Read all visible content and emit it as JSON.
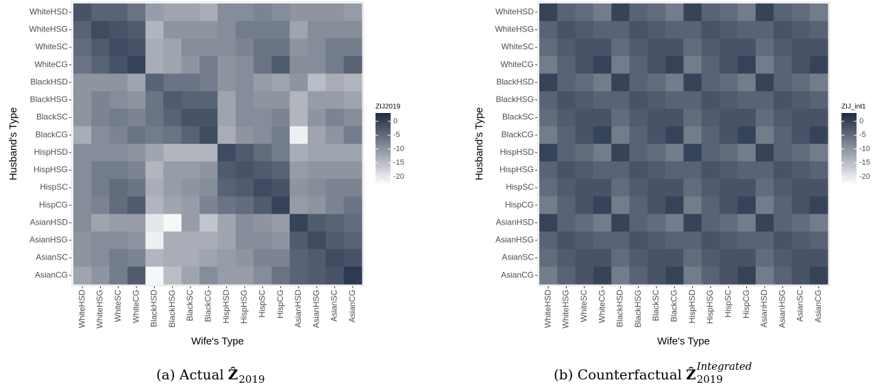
{
  "chart_data": [
    {
      "type": "heatmap",
      "x_label": "Wife's Type",
      "y_label": "Husband's Type",
      "colorbar_title": "ZIJ2019",
      "caption_prefix": "(a) Actual",
      "caption_symbol": "Ẑ",
      "caption_subscript": "2019",
      "x_categories": [
        "WhiteHSD",
        "WhiteHSG",
        "WhiteSC",
        "WhiteCG",
        "BlackHSD",
        "BlackHSG",
        "BlackSC",
        "BlackCG",
        "HispHSD",
        "HispHSG",
        "HispSC",
        "HispCG",
        "AsianHSD",
        "AsianHSG",
        "AsianSC",
        "AsianCG"
      ],
      "y_categories": [
        "WhiteHSD",
        "WhiteHSG",
        "WhiteSC",
        "WhiteCG",
        "BlackHSD",
        "BlackHSG",
        "BlackSC",
        "BlackCG",
        "HispHSD",
        "HispHSG",
        "HispSC",
        "HispCG",
        "AsianHSD",
        "AsianHSG",
        "AsianSC",
        "AsianCG"
      ],
      "values": [
        [
          -2,
          -4,
          -4,
          -6,
          -11,
          -12,
          -12,
          -13,
          -9,
          -9,
          -8,
          -9,
          -10,
          -10,
          -10,
          -11
        ],
        [
          -4,
          -1,
          -2,
          -3,
          -14,
          -10,
          -10,
          -10,
          -9,
          -7,
          -7,
          -7,
          -12,
          -9,
          -9,
          -9
        ],
        [
          -5,
          -3,
          -1,
          -2,
          -13,
          -12,
          -9,
          -9,
          -9,
          -8,
          -6,
          -6,
          -10,
          -9,
          -7,
          -7
        ],
        [
          -6,
          -4,
          -2,
          0,
          -13,
          -12,
          -10,
          -7,
          -10,
          -9,
          -6,
          -3,
          -9,
          -9,
          -7,
          -4
        ],
        [
          -10,
          -10,
          -10,
          -12,
          -4,
          -6,
          -6,
          -7,
          -10,
          -9,
          -11,
          -12,
          -10,
          -15,
          -13,
          -14
        ],
        [
          -10,
          -8,
          -9,
          -10,
          -6,
          -3,
          -4,
          -4,
          -12,
          -9,
          -10,
          -10,
          -14,
          -11,
          -11,
          -12
        ],
        [
          -10,
          -8,
          -7,
          -8,
          -6,
          -4,
          -2,
          -2,
          -12,
          -9,
          -9,
          -8,
          -14,
          -10,
          -8,
          -9
        ],
        [
          -13,
          -9,
          -8,
          -6,
          -7,
          -6,
          -4,
          -1,
          -13,
          -10,
          -9,
          -7,
          -21,
          -12,
          -10,
          -7
        ],
        [
          -9,
          -9,
          -9,
          -10,
          -12,
          -14,
          -14,
          -14,
          -1,
          -3,
          -5,
          -7,
          -13,
          -12,
          -12,
          -12
        ],
        [
          -9,
          -7,
          -7,
          -8,
          -14,
          -11,
          -11,
          -10,
          -3,
          -2,
          -3,
          -4,
          -11,
          -10,
          -10,
          -10
        ],
        [
          -9,
          -7,
          -5,
          -6,
          -13,
          -11,
          -10,
          -9,
          -4,
          -3,
          -1,
          -2,
          -10,
          -9,
          -8,
          -8
        ],
        [
          -9,
          -8,
          -5,
          -3,
          -14,
          -12,
          -11,
          -8,
          -6,
          -5,
          -3,
          0,
          -11,
          -10,
          -8,
          -6
        ],
        [
          -9,
          -12,
          -11,
          -11,
          -20,
          -22,
          -11,
          -16,
          -12,
          -9,
          -10,
          -11,
          0,
          -3,
          -4,
          -5
        ],
        [
          -10,
          -9,
          -9,
          -10,
          -21,
          -13,
          -13,
          -13,
          -12,
          -9,
          -9,
          -10,
          -3,
          -1,
          -3,
          -4
        ],
        [
          -10,
          -9,
          -7,
          -8,
          -14,
          -13,
          -13,
          -12,
          -11,
          -10,
          -8,
          -8,
          -4,
          -3,
          -1,
          -2
        ],
        [
          -12,
          -10,
          -7,
          -3,
          -22,
          -15,
          -12,
          -9,
          -11,
          -11,
          -9,
          -6,
          -4,
          -3,
          -2,
          1
        ]
      ],
      "clim": [
        -23,
        3
      ],
      "cticks": [
        0,
        -5,
        -10,
        -15,
        -20
      ],
      "low_color": "#ffffff",
      "high_color": "#1c2a43"
    },
    {
      "type": "heatmap",
      "x_label": "Wife's Type",
      "y_label": "Husband's Type",
      "colorbar_title": "ZIJ_int1",
      "caption_prefix": "(b) Counterfactual",
      "caption_symbol": "Ẑ",
      "caption_subscript": "2019",
      "caption_superscript": "Integrated",
      "x_categories": [
        "WhiteHSD",
        "WhiteHSG",
        "WhiteSC",
        "WhiteCG",
        "BlackHSD",
        "BlackHSG",
        "BlackSC",
        "BlackCG",
        "HispHSD",
        "HispHSG",
        "HispSC",
        "HispCG",
        "AsianHSD",
        "AsianHSG",
        "AsianSC",
        "AsianCG"
      ],
      "y_categories": [
        "WhiteHSD",
        "WhiteHSG",
        "WhiteSC",
        "WhiteCG",
        "BlackHSD",
        "BlackHSG",
        "BlackSC",
        "BlackCG",
        "HispHSD",
        "HispHSG",
        "HispSC",
        "HispCG",
        "AsianHSD",
        "AsianHSG",
        "AsianSC",
        "AsianCG"
      ],
      "values": [
        [
          0,
          -4,
          -5,
          -7,
          0,
          -4,
          -5,
          -7,
          0,
          -4,
          -5,
          -7,
          0,
          -4,
          -5,
          -7
        ],
        [
          -4,
          -2,
          -3,
          -4,
          -4,
          -2,
          -3,
          -4,
          -4,
          -2,
          -3,
          -4,
          -4,
          -2,
          -3,
          -4
        ],
        [
          -5,
          -3,
          -2,
          -2,
          -5,
          -3,
          -2,
          -2,
          -5,
          -3,
          -2,
          -2,
          -5,
          -3,
          -2,
          -2
        ],
        [
          -7,
          -4,
          -2,
          0,
          -7,
          -4,
          -2,
          0,
          -7,
          -4,
          -2,
          0,
          -7,
          -4,
          -2,
          0
        ],
        [
          0,
          -4,
          -5,
          -7,
          0,
          -4,
          -5,
          -7,
          0,
          -4,
          -5,
          -7,
          0,
          -4,
          -5,
          -7
        ],
        [
          -4,
          -2,
          -3,
          -4,
          -4,
          -2,
          -3,
          -4,
          -4,
          -2,
          -3,
          -4,
          -4,
          -2,
          -3,
          -4
        ],
        [
          -5,
          -3,
          -2,
          -2,
          -5,
          -3,
          -2,
          -2,
          -5,
          -3,
          -2,
          -2,
          -5,
          -3,
          -2,
          -2
        ],
        [
          -7,
          -4,
          -2,
          0,
          -7,
          -4,
          -2,
          0,
          -7,
          -4,
          -2,
          0,
          -7,
          -4,
          -2,
          0
        ],
        [
          0,
          -4,
          -5,
          -7,
          0,
          -4,
          -5,
          -7,
          0,
          -4,
          -5,
          -7,
          0,
          -4,
          -5,
          -7
        ],
        [
          -4,
          -2,
          -3,
          -4,
          -4,
          -2,
          -3,
          -4,
          -4,
          -2,
          -3,
          -4,
          -4,
          -2,
          -3,
          -4
        ],
        [
          -5,
          -3,
          -2,
          -2,
          -5,
          -3,
          -2,
          -2,
          -5,
          -3,
          -2,
          -2,
          -5,
          -3,
          -2,
          -2
        ],
        [
          -7,
          -4,
          -2,
          0,
          -7,
          -4,
          -2,
          0,
          -7,
          -4,
          -2,
          0,
          -7,
          -4,
          -2,
          0
        ],
        [
          0,
          -4,
          -5,
          -7,
          0,
          -4,
          -5,
          -7,
          0,
          -4,
          -5,
          -7,
          0,
          -4,
          -5,
          -7
        ],
        [
          -4,
          -2,
          -3,
          -4,
          -4,
          -2,
          -3,
          -4,
          -4,
          -2,
          -3,
          -4,
          -4,
          -2,
          -3,
          -4
        ],
        [
          -5,
          -3,
          -2,
          -2,
          -5,
          -3,
          -2,
          -2,
          -5,
          -3,
          -2,
          -2,
          -5,
          -3,
          -2,
          -2
        ],
        [
          -7,
          -4,
          -2,
          0,
          -7,
          -4,
          -2,
          0,
          -7,
          -4,
          -2,
          0,
          -7,
          -4,
          -2,
          0
        ]
      ],
      "clim": [
        -23,
        3
      ],
      "cticks": [
        0,
        -5,
        -10,
        -15,
        -20
      ],
      "low_color": "#ffffff",
      "high_color": "#1c2a43"
    }
  ]
}
